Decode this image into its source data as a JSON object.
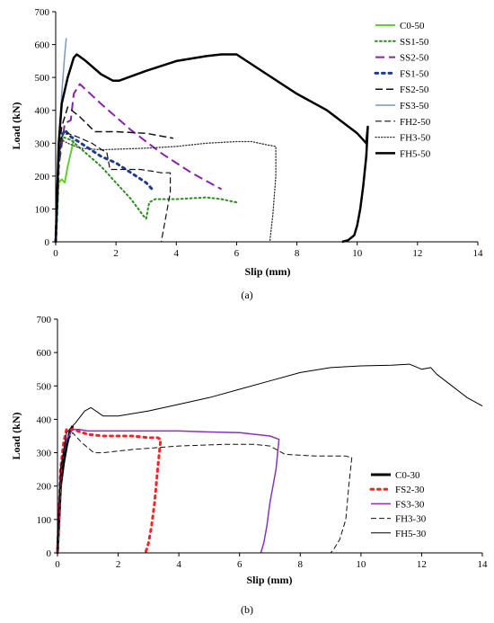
{
  "chart_data": [
    {
      "type": "line",
      "caption": "(a)",
      "xlabel": "Slip (mm)",
      "ylabel": "Load (kN)",
      "xlim": [
        0,
        14
      ],
      "ylim": [
        0,
        700
      ],
      "xticks": [
        0,
        2,
        4,
        6,
        8,
        10,
        12,
        14
      ],
      "yticks": [
        0,
        100,
        200,
        300,
        400,
        500,
        600,
        700
      ],
      "grid": false,
      "legend_position": "right",
      "series": [
        {
          "name": "C0-50",
          "color": "#66cc33",
          "dash": "solid",
          "width": 2,
          "x": [
            0,
            0.1,
            0.2,
            0.3,
            0.4,
            0.5,
            0.6
          ],
          "y": [
            0,
            180,
            190,
            180,
            230,
            270,
            310
          ]
        },
        {
          "name": "SS1-50",
          "color": "#2e8b22",
          "dash": "dotted",
          "width": 2,
          "x": [
            0,
            0.1,
            0.2,
            0.5,
            1,
            1.5,
            2,
            2.5,
            2.9,
            3.0,
            3.1,
            3.3,
            4,
            5,
            5.5,
            6
          ],
          "y": [
            0,
            260,
            320,
            310,
            270,
            230,
            180,
            130,
            80,
            70,
            120,
            130,
            130,
            135,
            130,
            120
          ]
        },
        {
          "name": "SS2-50",
          "color": "#8822aa",
          "dash": "dashed",
          "width": 2,
          "x": [
            0,
            0.1,
            0.3,
            0.5,
            0.6,
            0.8,
            1.5,
            2.5,
            3.5,
            4.5,
            5.5
          ],
          "y": [
            0,
            230,
            360,
            370,
            450,
            480,
            420,
            340,
            270,
            210,
            160
          ]
        },
        {
          "name": "FS1-50",
          "color": "#1f3a93",
          "dash": "dotted",
          "width": 3,
          "x": [
            0,
            0.1,
            0.2,
            0.3,
            0.5,
            1,
            1.5,
            2,
            2.5,
            3,
            3.2
          ],
          "y": [
            0,
            250,
            320,
            340,
            320,
            290,
            260,
            240,
            210,
            180,
            160
          ]
        },
        {
          "name": "FS2-50",
          "color": "#111111",
          "dash": "dashed",
          "width": 1.5,
          "x": [
            0,
            0.1,
            0.2,
            0.4,
            0.8,
            1.3,
            2.0,
            3.0,
            3.9
          ],
          "y": [
            0,
            270,
            350,
            410,
            380,
            335,
            335,
            330,
            315
          ]
        },
        {
          "name": "FS3-50",
          "color": "#7799bb",
          "dash": "solid",
          "width": 1.5,
          "x": [
            0,
            0.1,
            0.2,
            0.3,
            0.35
          ],
          "y": [
            0,
            250,
            450,
            570,
            620
          ]
        },
        {
          "name": "FH2-50",
          "color": "#111111",
          "dash": "dashed",
          "width": 1.2,
          "x": [
            0,
            0.1,
            0.2,
            0.4,
            0.7,
            1.2,
            1.7,
            1.8,
            2.3,
            2.8,
            3.2,
            3.5,
            3.7,
            3.8,
            3.8,
            3.6,
            3.5
          ],
          "y": [
            0,
            250,
            320,
            330,
            320,
            300,
            270,
            220,
            220,
            220,
            215,
            210,
            210,
            210,
            150,
            50,
            0
          ]
        },
        {
          "name": "FH3-50",
          "color": "#333333",
          "dash": "dotted",
          "width": 1.3,
          "x": [
            0,
            0.1,
            0.2,
            0.4,
            0.8,
            1.5,
            3,
            4,
            5,
            6,
            6.5,
            7.0,
            7.3,
            7.3,
            7.2,
            7.1
          ],
          "y": [
            0,
            260,
            310,
            300,
            285,
            280,
            285,
            290,
            300,
            305,
            305,
            295,
            290,
            200,
            80,
            0
          ]
        },
        {
          "name": "FH5-50",
          "color": "#000000",
          "dash": "solid",
          "width": 2.5,
          "x": [
            0,
            0.1,
            0.2,
            0.4,
            0.6,
            0.7,
            1.0,
            1.5,
            1.9,
            2.1,
            3,
            4,
            5,
            5.5,
            6.0,
            7,
            8,
            9,
            9.5,
            10.0,
            10.3,
            10.35,
            10.3,
            10.2,
            10.1,
            10.0,
            9.9,
            9.7,
            9.5
          ],
          "y": [
            0,
            300,
            420,
            500,
            560,
            570,
            550,
            510,
            490,
            490,
            520,
            550,
            565,
            570,
            570,
            510,
            450,
            400,
            365,
            330,
            300,
            350,
            260,
            170,
            100,
            50,
            20,
            5,
            0
          ]
        }
      ]
    },
    {
      "type": "line",
      "caption": "(b)",
      "xlabel": "Slip (mm)",
      "ylabel": "Load (kN)",
      "xlim": [
        0,
        14
      ],
      "ylim": [
        0,
        700
      ],
      "xticks": [
        0,
        2,
        4,
        6,
        8,
        10,
        12,
        14
      ],
      "yticks": [
        0,
        100,
        200,
        300,
        400,
        500,
        600,
        700
      ],
      "grid": false,
      "legend_position": "bottom-right",
      "series": [
        {
          "name": "C0-30",
          "color": "#000000",
          "dash": "solid",
          "width": 3,
          "x": [
            0,
            0.1,
            0.2,
            0.3,
            0.4,
            0.5
          ],
          "y": [
            0,
            200,
            270,
            320,
            360,
            380
          ]
        },
        {
          "name": "FS2-30",
          "color": "#ff2222",
          "dash": "dotted",
          "width": 3,
          "x": [
            0,
            0.1,
            0.2,
            0.3,
            0.5,
            1.0,
            1.5,
            2.0,
            2.5,
            3.0,
            3.3,
            3.4,
            3.3,
            3.2,
            3.1,
            3.0,
            2.9
          ],
          "y": [
            0,
            250,
            330,
            370,
            370,
            355,
            350,
            350,
            350,
            345,
            345,
            340,
            250,
            150,
            80,
            30,
            0
          ]
        },
        {
          "name": "FS3-30",
          "color": "#8833bb",
          "dash": "solid",
          "width": 1.5,
          "x": [
            0,
            0.1,
            0.3,
            0.5,
            0.7,
            1,
            2,
            3,
            4,
            5,
            6,
            6.5,
            7.0,
            7.3,
            7.2,
            7.0,
            6.9,
            6.8,
            6.7
          ],
          "y": [
            0,
            250,
            340,
            370,
            370,
            365,
            365,
            365,
            365,
            362,
            360,
            355,
            350,
            340,
            250,
            150,
            80,
            30,
            0
          ]
        },
        {
          "name": "FH3-30",
          "color": "#111111",
          "dash": "dashed",
          "width": 1,
          "x": [
            0,
            0.1,
            0.3,
            0.5,
            0.8,
            1.2,
            1.5,
            2.5,
            4,
            5.5,
            6.5,
            7.0,
            7.5,
            8.5,
            9.5,
            9.7,
            9.6,
            9.5,
            9.3,
            9.1,
            9.0
          ],
          "y": [
            0,
            250,
            330,
            360,
            330,
            300,
            300,
            310,
            320,
            325,
            325,
            320,
            295,
            290,
            290,
            285,
            200,
            100,
            40,
            10,
            0
          ]
        },
        {
          "name": "FH5-30",
          "color": "#000000",
          "dash": "solid",
          "width": 1,
          "x": [
            0,
            0.1,
            0.3,
            0.6,
            0.9,
            1.1,
            1.5,
            2,
            3,
            4,
            5,
            6,
            7,
            8,
            9,
            10,
            11,
            11.6,
            12,
            12.3,
            12.5,
            13,
            13.5,
            14
          ],
          "y": [
            0,
            250,
            360,
            390,
            425,
            435,
            410,
            410,
            425,
            445,
            465,
            490,
            515,
            540,
            555,
            560,
            562,
            565,
            550,
            555,
            535,
            500,
            465,
            440
          ]
        }
      ]
    }
  ]
}
